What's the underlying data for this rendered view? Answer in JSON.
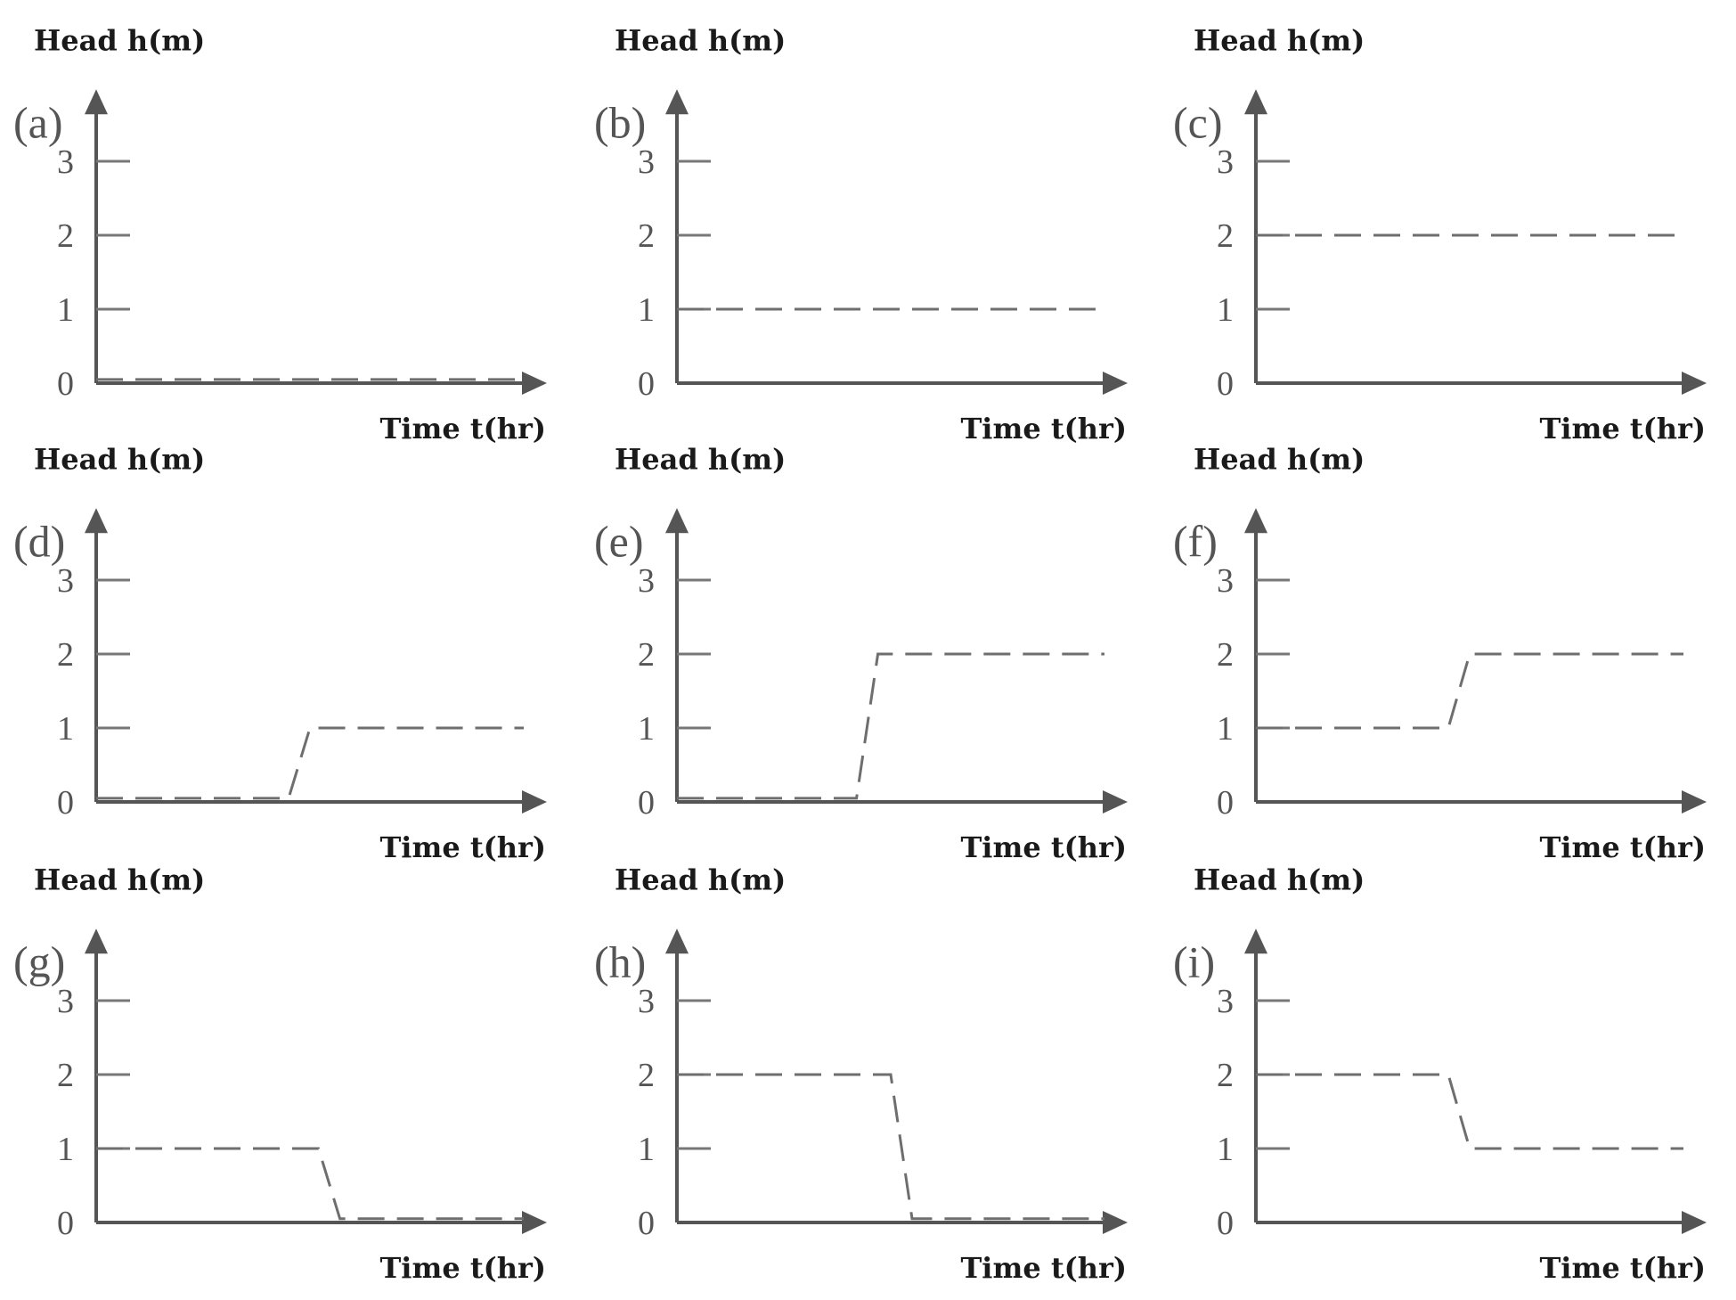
{
  "chart_data": [
    {
      "type": "line",
      "panel_label": "(a)",
      "ylabel": "Head h(m)",
      "xlabel": "Time t(hr)",
      "ylim": [
        0,
        3.9
      ],
      "yticks": [
        0,
        1,
        2,
        3
      ],
      "series": [
        {
          "x": [
            0,
            1
          ],
          "y": [
            0.05,
            0.05
          ]
        }
      ]
    },
    {
      "type": "line",
      "panel_label": "(b)",
      "ylabel": "Head h(m)",
      "xlabel": "Time t(hr)",
      "ylim": [
        0,
        3.9
      ],
      "yticks": [
        0,
        1,
        2,
        3
      ],
      "series": [
        {
          "x": [
            0,
            1
          ],
          "y": [
            1,
            1
          ]
        }
      ]
    },
    {
      "type": "line",
      "panel_label": "(c)",
      "ylabel": "Head h(m)",
      "xlabel": "Time t(hr)",
      "ylim": [
        0,
        3.9
      ],
      "yticks": [
        0,
        1,
        2,
        3
      ],
      "series": [
        {
          "x": [
            0,
            1
          ],
          "y": [
            2,
            2
          ]
        }
      ]
    },
    {
      "type": "line",
      "panel_label": "(d)",
      "ylabel": "Head h(m)",
      "xlabel": "Time t(hr)",
      "ylim": [
        0,
        3.9
      ],
      "yticks": [
        0,
        1,
        2,
        3
      ],
      "series": [
        {
          "x": [
            0,
            0.45,
            0.5,
            1
          ],
          "y": [
            0.05,
            0.05,
            1,
            1
          ]
        }
      ]
    },
    {
      "type": "line",
      "panel_label": "(e)",
      "ylabel": "Head h(m)",
      "xlabel": "Time t(hr)",
      "ylim": [
        0,
        3.9
      ],
      "yticks": [
        0,
        1,
        2,
        3
      ],
      "series": [
        {
          "x": [
            0,
            0.42,
            0.47,
            1
          ],
          "y": [
            0.05,
            0.05,
            2,
            2
          ]
        }
      ]
    },
    {
      "type": "line",
      "panel_label": "(f)",
      "ylabel": "Head h(m)",
      "xlabel": "Time t(hr)",
      "ylim": [
        0,
        3.9
      ],
      "yticks": [
        0,
        1,
        2,
        3
      ],
      "series": [
        {
          "x": [
            0,
            0.45,
            0.5,
            1
          ],
          "y": [
            1,
            1,
            2,
            2
          ]
        }
      ]
    },
    {
      "type": "line",
      "panel_label": "(g)",
      "ylabel": "Head h(m)",
      "xlabel": "Time t(hr)",
      "ylim": [
        0,
        3.9
      ],
      "yticks": [
        0,
        1,
        2,
        3
      ],
      "series": [
        {
          "x": [
            0,
            0.52,
            0.57,
            1
          ],
          "y": [
            1,
            1,
            0.05,
            0.05
          ]
        }
      ]
    },
    {
      "type": "line",
      "panel_label": "(h)",
      "ylabel": "Head h(m)",
      "xlabel": "Time t(hr)",
      "ylim": [
        0,
        3.9
      ],
      "yticks": [
        0,
        1,
        2,
        3
      ],
      "series": [
        {
          "x": [
            0,
            0.5,
            0.55,
            1
          ],
          "y": [
            2,
            2,
            0.05,
            0.05
          ]
        }
      ]
    },
    {
      "type": "line",
      "panel_label": "(i)",
      "ylabel": "Head h(m)",
      "xlabel": "Time t(hr)",
      "ylim": [
        0,
        3.9
      ],
      "yticks": [
        0,
        1,
        2,
        3
      ],
      "series": [
        {
          "x": [
            0,
            0.45,
            0.5,
            1
          ],
          "y": [
            2,
            2,
            1,
            1
          ]
        }
      ]
    }
  ]
}
